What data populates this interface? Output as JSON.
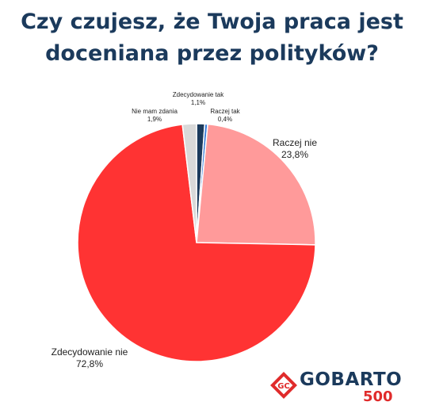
{
  "title_line1": "Czy czujesz, że Twoja praca jest",
  "title_line2": "doceniana przez polityków?",
  "chart_data": {
    "type": "pie",
    "title": "Czy czujesz, że Twoja praca jest doceniana przez polityków?",
    "slices": [
      {
        "label": "Zdecydowanie tak",
        "value": 1.1,
        "value_text": "1,1%",
        "color": "#1b3a5c"
      },
      {
        "label": "Raczej tak",
        "value": 0.4,
        "value_text": "0,4%",
        "color": "#3b7dd8"
      },
      {
        "label": "Raczej nie",
        "value": 23.8,
        "value_text": "23,8%",
        "color": "#ff9a9a"
      },
      {
        "label": "Zdecydowanie nie",
        "value": 72.8,
        "value_text": "72,8%",
        "color": "#ff3333"
      },
      {
        "label": "Nie mam zdania",
        "value": 1.9,
        "value_text": "1,9%",
        "color": "#d9d9d9"
      }
    ]
  },
  "logo": {
    "name": "GOBARTO",
    "number": "500",
    "mark_text": "GC",
    "color_primary": "#1b3a5c",
    "color_accent": "#e02b2b"
  }
}
